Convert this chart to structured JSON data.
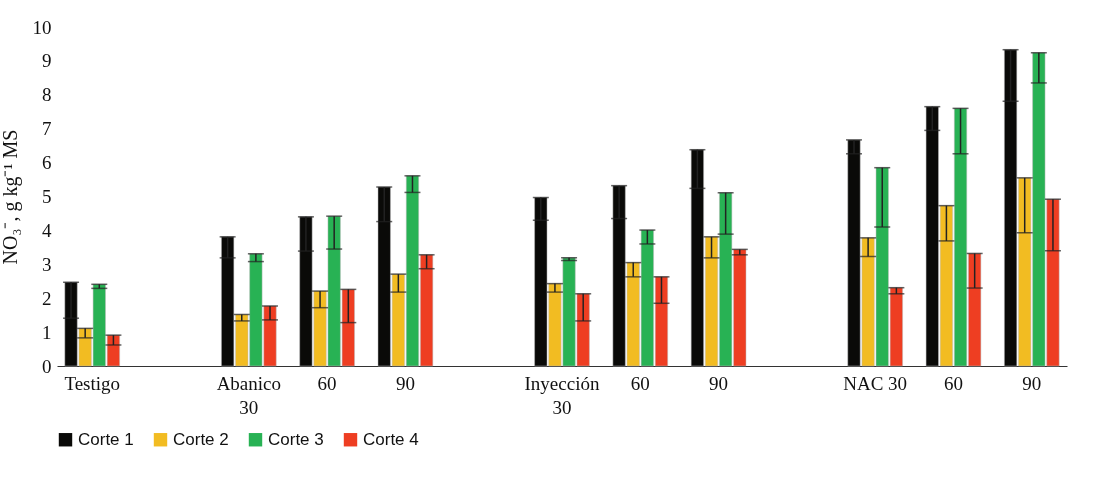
{
  "chart_data": {
    "type": "bar",
    "ylabel": "NO₃⁻, g kg⁻¹ MS",
    "categories": [
      "Testigo",
      null,
      "Abanico\n30",
      "60",
      "90",
      null,
      "Inyección\n30",
      "60",
      "90",
      null,
      "NAC 30",
      "60",
      "90"
    ],
    "series": [
      {
        "name": "Corte 1",
        "color": "#0a0a08",
        "values": [
          2.47,
          null,
          3.81,
          4.4,
          5.28,
          null,
          4.97,
          5.32,
          6.38,
          null,
          6.67,
          7.65,
          9.33
        ],
        "errors": [
          [
            1.41,
            2.47
          ],
          null,
          [
            3.19,
            3.81
          ],
          [
            3.39,
            4.4
          ],
          [
            4.26,
            5.28
          ],
          null,
          [
            4.3,
            4.97
          ],
          [
            4.35,
            5.32
          ],
          [
            5.24,
            6.38
          ],
          null,
          [
            6.26,
            6.67
          ],
          [
            6.95,
            7.65
          ],
          [
            7.81,
            9.33
          ]
        ]
      },
      {
        "name": "Corte 2",
        "color": "#f2bc22",
        "values": [
          1.11,
          null,
          1.52,
          2.21,
          2.71,
          null,
          2.43,
          3.05,
          3.81,
          null,
          3.78,
          4.73,
          5.55
        ],
        "errors": [
          [
            0.83,
            1.11
          ],
          null,
          [
            1.33,
            1.52
          ],
          [
            1.72,
            2.21
          ],
          [
            2.18,
            2.71
          ],
          null,
          [
            2.18,
            2.43
          ],
          [
            2.63,
            3.05
          ],
          [
            3.19,
            3.81
          ],
          null,
          [
            3.23,
            3.78
          ],
          [
            3.69,
            4.73
          ],
          [
            3.93,
            5.55
          ]
        ]
      },
      {
        "name": "Corte 3",
        "color": "#28b254",
        "values": [
          2.41,
          null,
          3.31,
          4.42,
          5.61,
          null,
          3.19,
          4.01,
          5.11,
          null,
          5.85,
          7.6,
          9.24
        ],
        "errors": [
          [
            2.29,
            2.41
          ],
          null,
          [
            3.08,
            3.31
          ],
          [
            3.45,
            4.42
          ],
          [
            5.12,
            5.61
          ],
          null,
          [
            3.11,
            3.19
          ],
          [
            3.6,
            4.01
          ],
          [
            3.89,
            5.11
          ],
          null,
          [
            4.1,
            5.85
          ],
          [
            6.26,
            7.6
          ],
          [
            8.35,
            9.24
          ]
        ]
      },
      {
        "name": "Corte 4",
        "color": "#ee3e22",
        "values": [
          0.91,
          null,
          1.77,
          2.26,
          3.28,
          null,
          2.13,
          2.63,
          3.44,
          null,
          2.31,
          3.32,
          4.92
        ],
        "errors": [
          [
            0.62,
            0.91
          ],
          null,
          [
            1.36,
            1.77
          ],
          [
            1.28,
            2.26
          ],
          [
            2.87,
            3.28
          ],
          null,
          [
            1.33,
            2.13
          ],
          [
            1.85,
            2.63
          ],
          [
            3.28,
            3.44
          ],
          null,
          [
            2.13,
            2.31
          ],
          [
            2.3,
            3.32
          ],
          [
            3.4,
            4.92
          ]
        ]
      }
    ],
    "ylim": [
      0,
      10
    ],
    "yticks": [
      0,
      1,
      2,
      3,
      4,
      5,
      6,
      7,
      8,
      9,
      10
    ],
    "legend": "bottom"
  }
}
